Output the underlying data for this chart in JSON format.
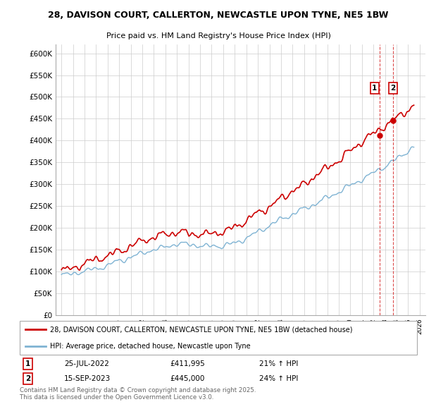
{
  "title_line1": "28, DAVISON COURT, CALLERTON, NEWCASTLE UPON TYNE, NE5 1BW",
  "title_line2": "Price paid vs. HM Land Registry's House Price Index (HPI)",
  "background_color": "#ffffff",
  "grid_color": "#cccccc",
  "red_color": "#cc0000",
  "blue_color": "#7fb3d3",
  "marker1_date_label": "25-JUL-2022",
  "marker1_price": "£411,995",
  "marker1_hpi": "21% ↑ HPI",
  "marker2_date_label": "15-SEP-2023",
  "marker2_price": "£445,000",
  "marker2_hpi": "24% ↑ HPI",
  "legend_line1": "28, DAVISON COURT, CALLERTON, NEWCASTLE UPON TYNE, NE5 1BW (detached house)",
  "legend_line2": "HPI: Average price, detached house, Newcastle upon Tyne",
  "footnote": "Contains HM Land Registry data © Crown copyright and database right 2025.\nThis data is licensed under the Open Government Licence v3.0.",
  "xmin": 1994.5,
  "xmax": 2026.5,
  "ymin": 0,
  "ymax": 620000,
  "yticks": [
    0,
    50000,
    100000,
    150000,
    200000,
    250000,
    300000,
    350000,
    400000,
    450000,
    500000,
    550000,
    600000
  ],
  "ytick_labels": [
    "£0",
    "£50K",
    "£100K",
    "£150K",
    "£200K",
    "£250K",
    "£300K",
    "£350K",
    "£400K",
    "£450K",
    "£500K",
    "£550K",
    "£600K"
  ],
  "xticks": [
    1995,
    1996,
    1997,
    1998,
    1999,
    2000,
    2001,
    2002,
    2003,
    2004,
    2005,
    2006,
    2007,
    2008,
    2009,
    2010,
    2011,
    2012,
    2013,
    2014,
    2015,
    2016,
    2017,
    2018,
    2019,
    2020,
    2021,
    2022,
    2023,
    2024,
    2025,
    2026
  ],
  "marker1_x": 2022.56,
  "marker1_y": 411995,
  "marker2_x": 2023.71,
  "marker2_y": 445000,
  "vline1_x": 2022.56,
  "vline2_x": 2023.71
}
